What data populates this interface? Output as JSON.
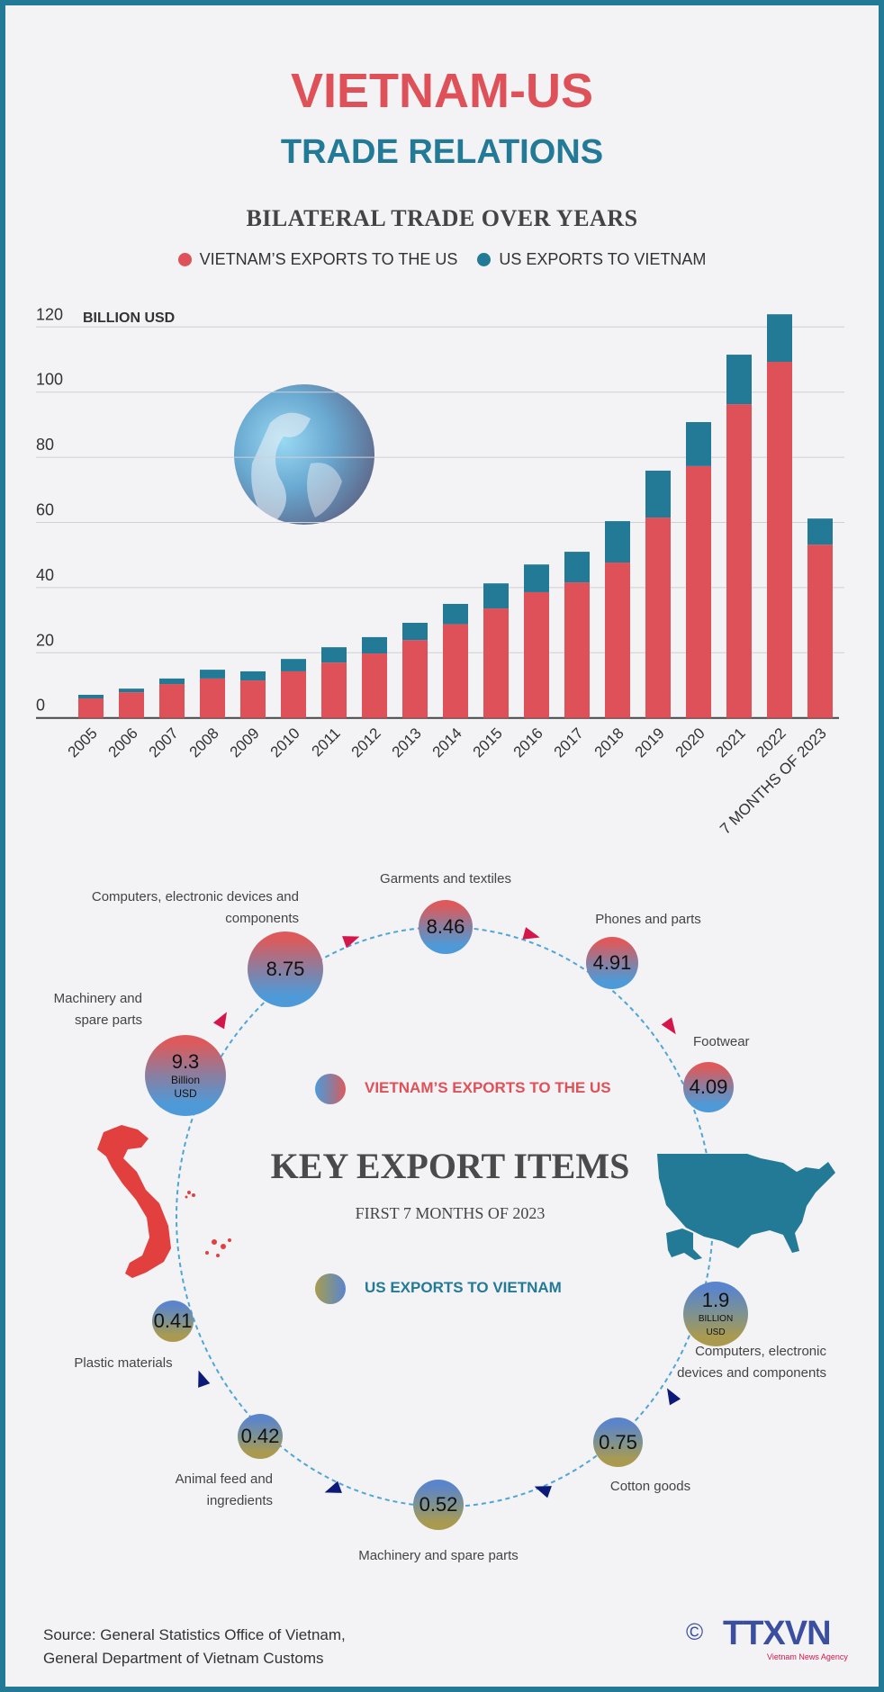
{
  "header": {
    "title": "VIETNAM-US",
    "subtitle": "TRADE RELATIONS"
  },
  "colors": {
    "vietnam_exports": "#de5158",
    "us_exports": "#237a96",
    "frame": "#237a96",
    "logo": "#3a4fa0"
  },
  "chart_data": {
    "type": "bar",
    "stacked": true,
    "title": "BILATERAL TRADE OVER YEARS",
    "ylabel": "BILLION USD",
    "ylim": [
      0,
      120
    ],
    "yticks": [
      0,
      20,
      40,
      60,
      80,
      100,
      120
    ],
    "grid": true,
    "legend_placement": "top",
    "categories": [
      "2005",
      "2006",
      "2007",
      "2008",
      "2009",
      "2010",
      "2011",
      "2012",
      "2013",
      "2014",
      "2015",
      "2016",
      "2017",
      "2018",
      "2019",
      "2020",
      "2021",
      "2022",
      "7 MONTHS OF 2023"
    ],
    "series": [
      {
        "name": "VIETNAM’S EXPORTS TO THE US",
        "color": "#de5158",
        "values": [
          6.0,
          7.9,
          10.4,
          12.1,
          11.5,
          14.3,
          17.0,
          19.8,
          23.9,
          28.8,
          33.6,
          38.6,
          41.6,
          47.7,
          61.5,
          77.3,
          96.3,
          109.3,
          53.2
        ]
      },
      {
        "name": "US EXPORTS TO VIETNAM",
        "color": "#237a96",
        "values": [
          1.1,
          1.1,
          1.7,
          2.7,
          2.8,
          3.8,
          4.7,
          5.0,
          5.3,
          6.2,
          7.7,
          8.5,
          9.4,
          12.7,
          14.4,
          13.5,
          15.2,
          14.6,
          8.0
        ]
      }
    ]
  },
  "key_exports": {
    "title": "KEY EXPORT ITEMS",
    "subtitle": "FIRST 7 MONTHS OF 2023",
    "vietnam_legend": "VIETNAM’S EXPORTS TO THE US",
    "us_legend": "US EXPORTS TO VIETNAM",
    "vietnam_items": [
      {
        "label": "Machinery and spare parts",
        "value": "9.3",
        "unit": "Billion USD"
      },
      {
        "label": "Computers, electronic devices and components",
        "value": "8.75"
      },
      {
        "label": "Garments and textiles",
        "value": "8.46"
      },
      {
        "label": "Phones and parts",
        "value": "4.91"
      },
      {
        "label": "Footwear",
        "value": "4.09"
      }
    ],
    "us_items": [
      {
        "label": "Computers, electronic devices and components",
        "value": "1.9",
        "unit": "BILLION USD"
      },
      {
        "label": "Cotton goods",
        "value": "0.75"
      },
      {
        "label": "Machinery and spare parts",
        "value": "0.52"
      },
      {
        "label": "Animal feed and ingredients",
        "value": "0.42"
      },
      {
        "label": "Plastic materials",
        "value": "0.41"
      }
    ]
  },
  "footer": {
    "source_line1": "Source: General Statistics Office of Vietnam,",
    "source_line2": "General Department of Vietnam Customs",
    "logo_text": "TTXVN",
    "logo_tagline": "Vietnam News Agency",
    "copyright": "©"
  }
}
